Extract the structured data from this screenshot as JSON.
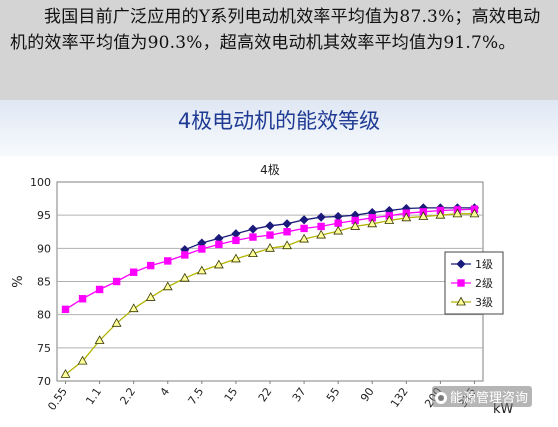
{
  "intro_text": "我国目前广泛应用的Y系列电动机效率平均值为87.3%；高效电动机的效率平均值为90.3%，超高效电动机其效率平均值为91.7%。",
  "slide_title": "4极电动机的能效等级",
  "watermark": "能源管理咨询",
  "chart_data": {
    "type": "line",
    "title": "4极",
    "ylabel": "%",
    "xlabel_unit": "kW",
    "ylim": [
      70,
      100
    ],
    "yticks": [
      70,
      75,
      80,
      85,
      90,
      95,
      100
    ],
    "grid": true,
    "legend": "right",
    "categories": [
      "0.55",
      "0.75",
      "1.1",
      "1.5",
      "2.2",
      "3",
      "4",
      "5.5",
      "7.5",
      "11",
      "15",
      "18.5",
      "22",
      "30",
      "37",
      "45",
      "55",
      "75",
      "90",
      "110",
      "132",
      "160",
      "200",
      "250",
      "315"
    ],
    "tick_labels": [
      "0.55",
      "1.1",
      "2.2",
      "4",
      "7.5",
      "15",
      "22",
      "37",
      "55",
      "90",
      "132",
      "200",
      "315"
    ],
    "series": [
      {
        "name": "1级",
        "color": "#1a1a7a",
        "marker": "diamond",
        "values": [
          null,
          null,
          null,
          null,
          null,
          null,
          null,
          89.8,
          90.8,
          91.5,
          92.2,
          92.9,
          93.4,
          93.7,
          94.3,
          94.7,
          94.8,
          95.0,
          95.4,
          95.7,
          96.0,
          96.1,
          96.1,
          96.1,
          96.1
        ]
      },
      {
        "name": "2级",
        "color": "#ff00ff",
        "marker": "square",
        "values": [
          80.8,
          82.4,
          83.8,
          85.0,
          86.4,
          87.4,
          88.1,
          89.0,
          89.9,
          90.6,
          91.2,
          91.7,
          92.0,
          92.5,
          93.0,
          93.3,
          93.8,
          94.2,
          94.6,
          94.9,
          95.3,
          95.5,
          95.7,
          95.8,
          95.9
        ]
      },
      {
        "name": "3级",
        "color": "#b3b300",
        "marker": "triangle",
        "values": [
          71.0,
          73.0,
          76.1,
          78.7,
          80.9,
          82.6,
          84.2,
          85.5,
          86.6,
          87.5,
          88.4,
          89.2,
          90.0,
          90.4,
          91.4,
          92.0,
          92.6,
          93.3,
          93.7,
          94.2,
          94.6,
          94.8,
          95.0,
          95.2,
          95.2
        ]
      }
    ]
  }
}
